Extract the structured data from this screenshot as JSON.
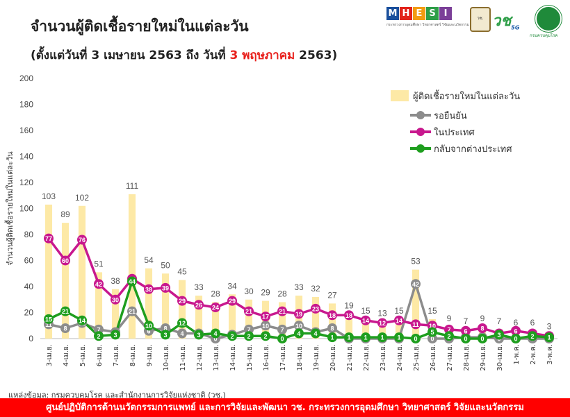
{
  "header": {
    "title": "จำนวนผู้ติดเชื้อรายใหม่ในแต่ละวัน",
    "subtitle_prefix": "(ตั้งแต่วันที่ 3 เมษายน 2563 ถึง วันที่ ",
    "subtitle_highlight": "3 พฤษภาคม",
    "subtitle_suffix": " 2563)",
    "highlight_color": "#e8211d"
  },
  "logos": {
    "mhesi_letters": [
      "M",
      "H",
      "E",
      "S",
      "I"
    ],
    "mhesi_colors": [
      "#1a4f9c",
      "#e2231a",
      "#f39c12",
      "#2e9e48",
      "#7b3f98"
    ],
    "mhesi_caption": "กระทรวงการอุดมศึกษา วิทยาศาสตร์ วิจัยและนวัตกรรม",
    "nrct_text": "วช.",
    "wch_text": "วช",
    "wch_sub": "5G",
    "ddc_caption": "กรมควบคุมโรค"
  },
  "source_text": "แหล่งข้อมูล: กรมควบคุมโรค และสำนักงานการวิจัยแห่งชาติ (วช.)",
  "footer_text": "ศูนย์ปฏิบัติการด้านนวัตกรรมการแพทย์ และการวิจัยและพัฒนา   วช.   กระทรวงการอุดมศึกษา วิทยาศาสตร์ วิจัยและนวัตกรรม",
  "chart_data": {
    "type": "bar",
    "ylabel": "จำนวนผู้ติดเชื้อรายใหม่ในแต่ละวัน",
    "xlabel": "",
    "ylim": [
      0,
      200
    ],
    "yticks": [
      0,
      20,
      40,
      60,
      80,
      100,
      120,
      140,
      160,
      180,
      200
    ],
    "grid": false,
    "legend_position": "top-right",
    "categories": [
      "3-เม.ย.",
      "4-เม.ย.",
      "5-เม.ย.",
      "6-เม.ย.",
      "7-เม.ย.",
      "8-เม.ย.",
      "9-เม.ย.",
      "10-เม.ย.",
      "11-เม.ย.",
      "12-เม.ย.",
      "13-เม.ย.",
      "14-เม.ย.",
      "15-เม.ย.",
      "16-เม.ย.",
      "17-เม.ย.",
      "18-เม.ย.",
      "19-เม.ย.",
      "20-เม.ย.",
      "21-เม.ย.",
      "22-เม.ย.",
      "23-เม.ย.",
      "24-เม.ย.",
      "25-เม.ย.",
      "26-เม.ย.",
      "27-เม.ย.",
      "28-เม.ย.",
      "29-เม.ย.",
      "30-เม.ย.",
      "1-พ.ค.",
      "2-พ.ค.",
      "3-พ.ค."
    ],
    "series": [
      {
        "name": "ผู้ติดเชื้อรายใหม่ในแต่ละวัน",
        "kind": "bar",
        "color": "#fde9a6",
        "values": [
          103,
          89,
          102,
          51,
          38,
          111,
          54,
          50,
          45,
          33,
          28,
          34,
          30,
          29,
          28,
          33,
          32,
          27,
          19,
          15,
          13,
          15,
          53,
          15,
          9,
          7,
          9,
          7,
          6,
          6,
          3
        ]
      },
      {
        "name": "รอยืนยัน",
        "kind": "line",
        "color": "#8c8c8c",
        "values": [
          11,
          8,
          12,
          7,
          5,
          21,
          6,
          8,
          4,
          4,
          0,
          3,
          7,
          10,
          7,
          10,
          5,
          8,
          0,
          0,
          0,
          0,
          42,
          0,
          0,
          1,
          1,
          0,
          0,
          0,
          0
        ]
      },
      {
        "name": "ในประเทศ",
        "kind": "line",
        "color": "#c8188e",
        "values": [
          77,
          60,
          76,
          42,
          30,
          46,
          38,
          39,
          29,
          26,
          24,
          29,
          21,
          17,
          21,
          19,
          23,
          18,
          18,
          14,
          12,
          14,
          11,
          10,
          7,
          6,
          8,
          4,
          6,
          4,
          2
        ]
      },
      {
        "name": "กลับจากต่างประเทศ",
        "kind": "line",
        "color": "#1e9e1e",
        "values": [
          15,
          21,
          14,
          2,
          3,
          44,
          10,
          3,
          12,
          3,
          4,
          2,
          2,
          2,
          0,
          4,
          4,
          1,
          1,
          1,
          1,
          1,
          0,
          5,
          2,
          0,
          0,
          3,
          0,
          2,
          1
        ]
      }
    ],
    "bar_labels": [
      "103",
      "89",
      "102",
      "51",
      "38",
      "111",
      "54",
      "50",
      "45",
      "33",
      "28",
      "34",
      "30",
      "29",
      "28",
      "33",
      "32",
      "27",
      "19",
      "15",
      "13",
      "15",
      "53",
      "15",
      "9",
      "7",
      "9",
      "7",
      "6",
      "6",
      "3"
    ]
  }
}
